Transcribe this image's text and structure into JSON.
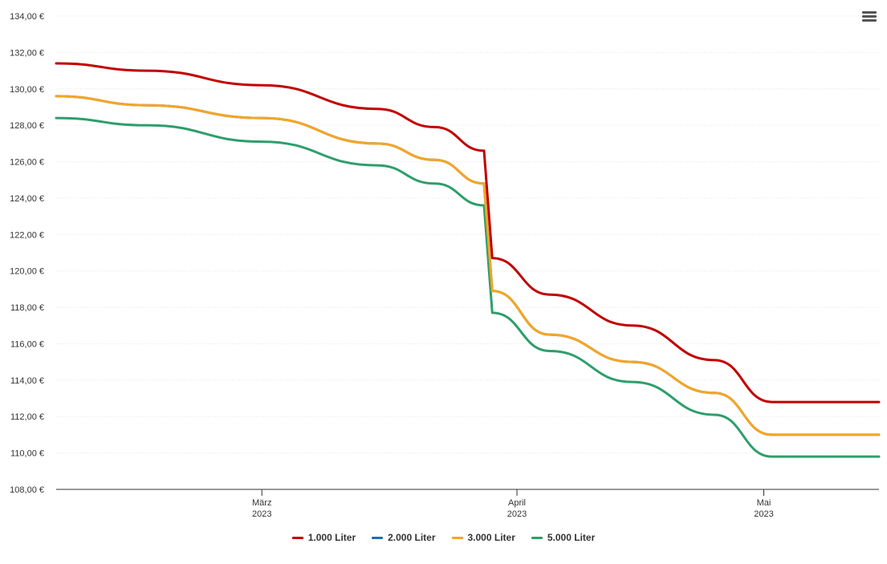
{
  "chart_data": {
    "type": "line",
    "title": "",
    "xlabel": "",
    "ylabel": "",
    "ylim": [
      108,
      134
    ],
    "yticks": [
      "108,00 €",
      "110,00 €",
      "112,00 €",
      "114,00 €",
      "116,00 €",
      "118,00 €",
      "120,00 €",
      "122,00 €",
      "124,00 €",
      "126,00 €",
      "128,00 €",
      "130,00 €",
      "132,00 €",
      "134,00 €"
    ],
    "xlim": [
      "2023-02-04",
      "2023-05-15"
    ],
    "xticks": [
      {
        "date": "2023-03-01",
        "label": "März",
        "year": "2023"
      },
      {
        "date": "2023-04-01",
        "label": "April",
        "year": "2023"
      },
      {
        "date": "2023-05-01",
        "label": "Mai",
        "year": "2023"
      }
    ],
    "grid": true,
    "legend_position": "bottom",
    "series": [
      {
        "name": "1.000 Liter",
        "color": "#c00000",
        "points": [
          [
            "2023-02-04",
            131.4
          ],
          [
            "2023-02-15",
            131.0
          ],
          [
            "2023-03-01",
            130.2
          ],
          [
            "2023-03-15",
            128.9
          ],
          [
            "2023-03-22",
            127.9
          ],
          [
            "2023-03-28",
            126.6
          ],
          [
            "2023-03-29",
            120.7
          ],
          [
            "2023-04-05",
            118.7
          ],
          [
            "2023-04-15",
            117.0
          ],
          [
            "2023-04-25",
            115.1
          ],
          [
            "2023-05-02",
            112.8
          ],
          [
            "2023-05-15",
            112.8
          ]
        ]
      },
      {
        "name": "2.000 Liter",
        "color": "#1f6fb4",
        "points": [
          [
            "2023-02-04",
            129.6
          ],
          [
            "2023-02-15",
            129.1
          ],
          [
            "2023-03-01",
            128.4
          ],
          [
            "2023-03-15",
            127.0
          ],
          [
            "2023-03-22",
            126.1
          ],
          [
            "2023-03-28",
            124.8
          ],
          [
            "2023-03-29",
            118.9
          ],
          [
            "2023-04-05",
            116.5
          ],
          [
            "2023-04-15",
            115.0
          ],
          [
            "2023-04-25",
            113.3
          ],
          [
            "2023-05-02",
            111.0
          ],
          [
            "2023-05-15",
            111.0
          ]
        ]
      },
      {
        "name": "3.000 Liter",
        "color": "#f5a623",
        "points": [
          [
            "2023-02-04",
            129.6
          ],
          [
            "2023-02-15",
            129.1
          ],
          [
            "2023-03-01",
            128.4
          ],
          [
            "2023-03-15",
            127.0
          ],
          [
            "2023-03-22",
            126.1
          ],
          [
            "2023-03-28",
            124.8
          ],
          [
            "2023-03-29",
            118.9
          ],
          [
            "2023-04-05",
            116.5
          ],
          [
            "2023-04-15",
            115.0
          ],
          [
            "2023-04-25",
            113.3
          ],
          [
            "2023-05-02",
            111.0
          ],
          [
            "2023-05-15",
            111.0
          ]
        ]
      },
      {
        "name": "5.000 Liter",
        "color": "#2e9e6b",
        "points": [
          [
            "2023-02-04",
            128.4
          ],
          [
            "2023-02-15",
            128.0
          ],
          [
            "2023-03-01",
            127.1
          ],
          [
            "2023-03-15",
            125.8
          ],
          [
            "2023-03-22",
            124.8
          ],
          [
            "2023-03-28",
            123.6
          ],
          [
            "2023-03-29",
            117.7
          ],
          [
            "2023-04-05",
            115.6
          ],
          [
            "2023-04-15",
            113.9
          ],
          [
            "2023-04-25",
            112.1
          ],
          [
            "2023-05-02",
            109.8
          ],
          [
            "2023-05-15",
            109.8
          ]
        ]
      }
    ]
  },
  "menu": {
    "icon": "hamburger-menu-icon"
  }
}
